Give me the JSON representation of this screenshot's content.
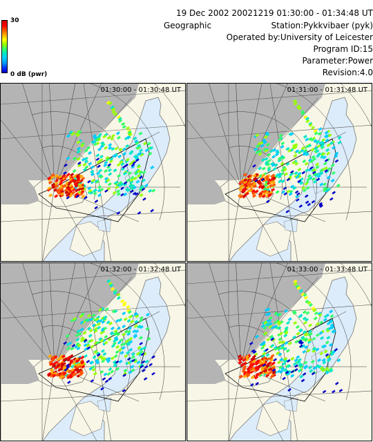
{
  "header": {
    "date_line": "19 Dec 2002 20021219 01:30:00 -  01:34:48 UT",
    "projection": "Geographic",
    "station": "Station:Pykkvibaer (pyk)",
    "operated_by": "Operated by:University of Leicester",
    "program_id": "Program ID:15",
    "parameter": "Parameter:Power",
    "revision": "Revision:4.0"
  },
  "colorbar": {
    "max_label": "30",
    "min_label": "0 dB (pwr)",
    "colors": [
      "#0000c8",
      "#0033ff",
      "#0099ff",
      "#00ccff",
      "#00e6c8",
      "#33ff66",
      "#99ff00",
      "#ffff00",
      "#ffaa00",
      "#ff5500",
      "#ff0000",
      "#cc0000"
    ]
  },
  "panels": [
    {
      "time": "01:30:00 -  01:30:48  UT"
    },
    {
      "time": "01:31:00 -  01:31:48  UT"
    },
    {
      "time": "01:32:00 -  01:32:48  UT"
    },
    {
      "time": "01:33:00 -  01:33:48  UT"
    }
  ],
  "map_colors": {
    "ocean": "#dcecfa",
    "land": "#f8f6e6",
    "no_coverage": "#b4b4b4"
  }
}
